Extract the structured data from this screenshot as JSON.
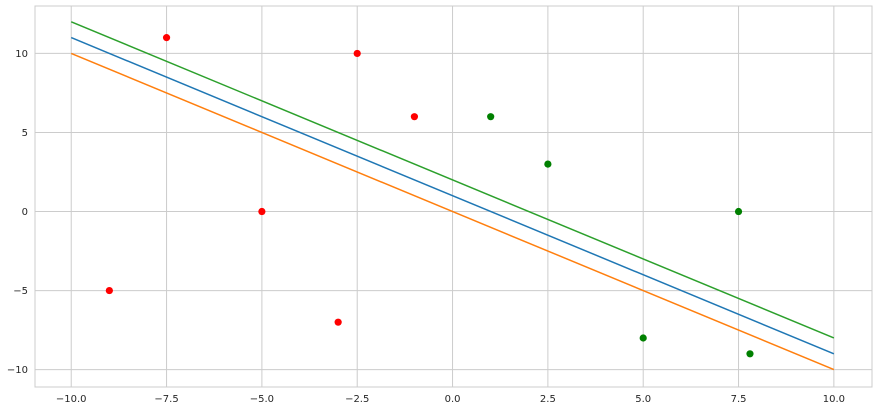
{
  "chart_data": {
    "type": "scatter",
    "title": "",
    "xlabel": "",
    "ylabel": "",
    "xlim": [
      -10.95,
      11.0
    ],
    "ylim": [
      -11.1,
      13.0
    ],
    "grid": true,
    "x_ticks": [
      -10.0,
      -7.5,
      -5.0,
      -2.5,
      0.0,
      2.5,
      5.0,
      7.5,
      10.0
    ],
    "x_tick_labels": [
      "−10.0",
      "−7.5",
      "−5.0",
      "−2.5",
      "0.0",
      "2.5",
      "5.0",
      "7.5",
      "10.0"
    ],
    "y_ticks": [
      -10,
      -5,
      0,
      5,
      10
    ],
    "y_tick_labels": [
      "−10",
      "−5",
      "0",
      "5",
      "10"
    ],
    "lines": [
      {
        "color": "#1f77b4",
        "x": [
          -10,
          10
        ],
        "y": [
          11,
          -9
        ]
      },
      {
        "color": "#ff7f0e",
        "x": [
          -10,
          10
        ],
        "y": [
          10,
          -10
        ]
      },
      {
        "color": "#2ca02c",
        "x": [
          -10,
          10
        ],
        "y": [
          12,
          -8
        ]
      }
    ],
    "series": [
      {
        "color": "#ff0000",
        "points": [
          [
            -9,
            -5
          ],
          [
            -7.5,
            11
          ],
          [
            -5,
            0
          ],
          [
            -3,
            -7
          ],
          [
            -2.5,
            10
          ],
          [
            -1,
            6
          ]
        ]
      },
      {
        "color": "#008000",
        "points": [
          [
            1,
            6
          ],
          [
            2.5,
            3
          ],
          [
            5,
            -8
          ],
          [
            7.5,
            0
          ],
          [
            7.8,
            -9
          ]
        ]
      }
    ]
  }
}
